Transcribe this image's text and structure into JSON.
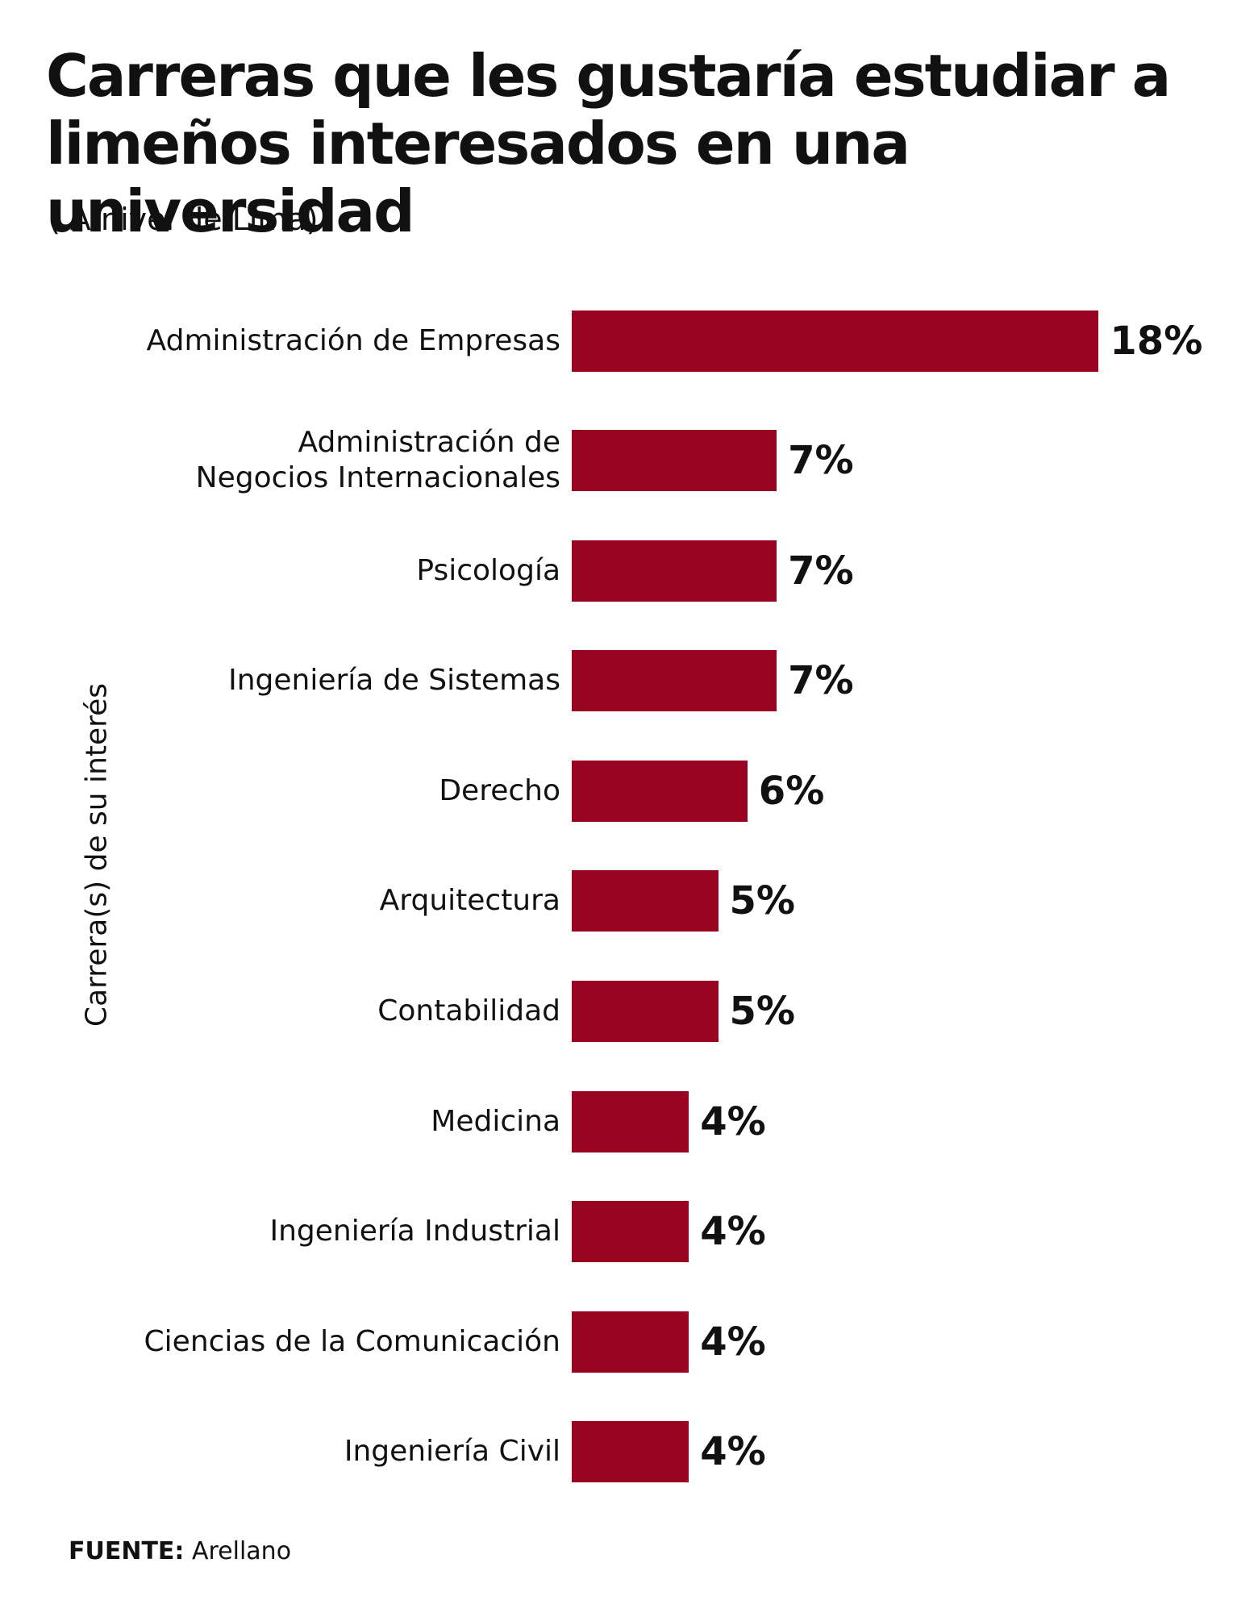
{
  "chart_data": {
    "type": "bar",
    "orientation": "horizontal",
    "title": "Carreras que les gustaría estudiar a limeños interesados en una universidad",
    "subtitle": "( A nivel de Lima)",
    "y_label": "Carrera(s) de su interés",
    "categories": [
      "Administración de Empresas",
      "Administración de\nNegocios Internacionales",
      "Psicología",
      "Ingeniería de Sistemas",
      "Derecho",
      "Arquitectura",
      "Contabilidad",
      "Medicina",
      "Ingeniería Industrial",
      "Ciencias de la Comunicación",
      "Ingeniería Civil"
    ],
    "values": [
      18,
      7,
      7,
      7,
      6,
      5,
      5,
      4,
      4,
      4,
      4
    ],
    "value_labels": [
      "18%",
      "7%",
      "7%",
      "7%",
      "6%",
      "5%",
      "5%",
      "4%",
      "4%",
      "4%",
      "4%"
    ],
    "color": "#990520",
    "source_label": "FUENTE:",
    "source": "Arellano"
  }
}
